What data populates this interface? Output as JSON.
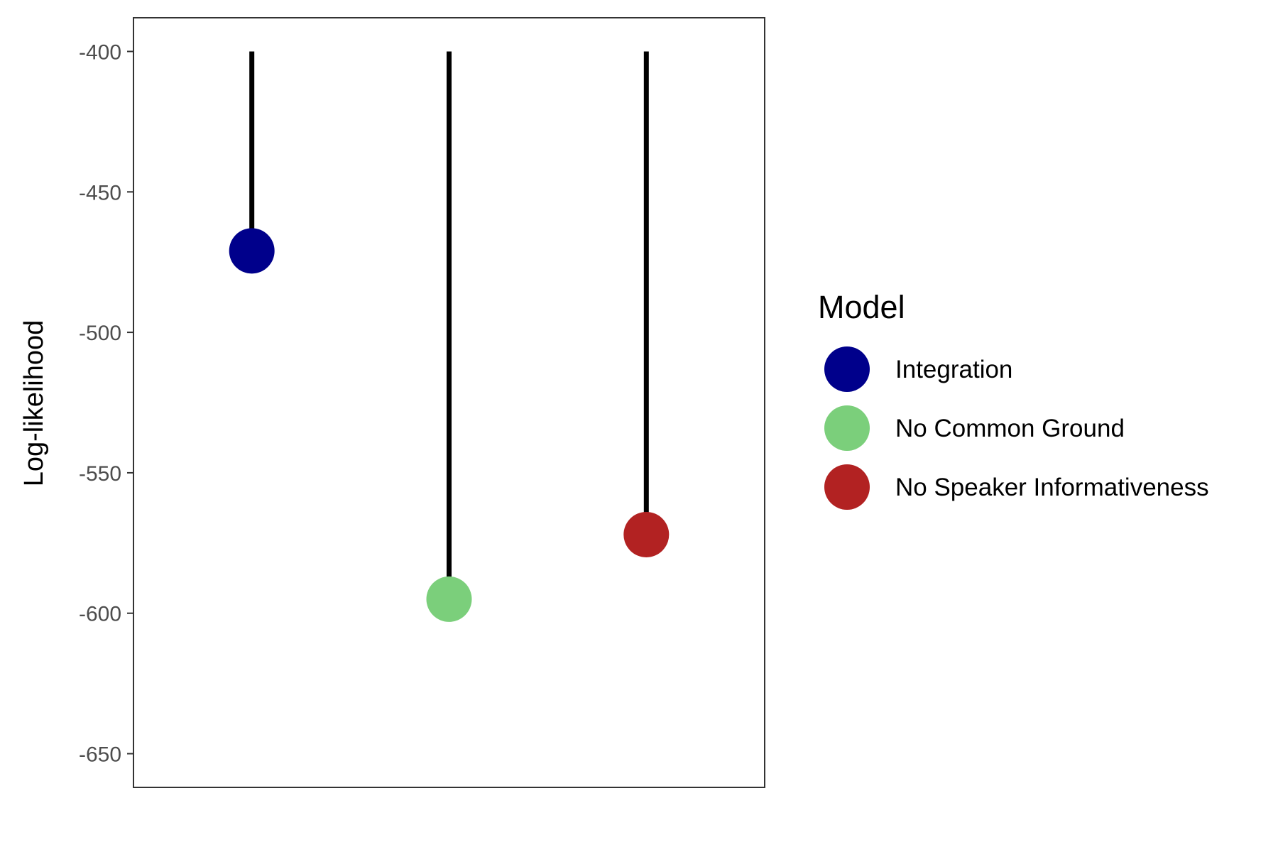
{
  "chart_data": {
    "type": "lollipop",
    "title": "",
    "xlabel": "",
    "ylabel": "Log-likelihood",
    "ylim": [
      -662,
      -388
    ],
    "baseline": -400,
    "yticks": [
      -400,
      -450,
      -500,
      -550,
      -600,
      -650
    ],
    "ytick_labels": [
      "-400",
      "-450",
      "-500",
      "-550",
      "-600",
      "-650"
    ],
    "grid": false,
    "legend": {
      "title": "Model",
      "placement": "right"
    },
    "series": [
      {
        "name": "Integration",
        "value": -471,
        "color": "#00008B"
      },
      {
        "name": "No Common Ground",
        "value": -595,
        "color": "#7BCF7B"
      },
      {
        "name": "No Speaker Informativeness",
        "value": -572,
        "color": "#B22222"
      }
    ]
  }
}
